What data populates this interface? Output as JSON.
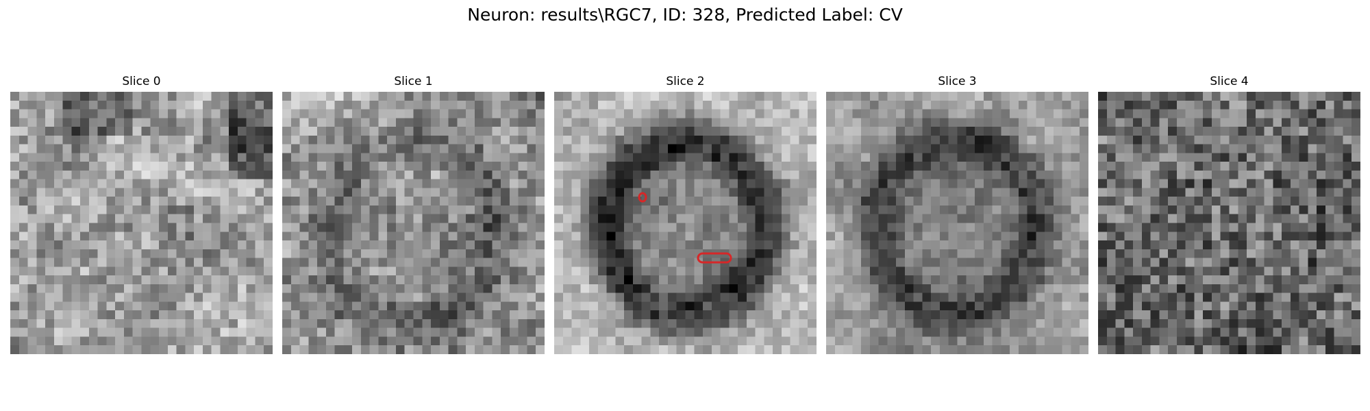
{
  "figure": {
    "title": "Neuron: results\\RGC7, ID: 328, Predicted Label: CV"
  },
  "slices": [
    {
      "label": "Slice 0",
      "pattern": "noisy-bright"
    },
    {
      "label": "Slice 1",
      "pattern": "faint-ring"
    },
    {
      "label": "Slice 2",
      "pattern": "dark-ring-bright-bg"
    },
    {
      "label": "Slice 3",
      "pattern": "ring"
    },
    {
      "label": "Slice 4",
      "pattern": "noisy-dark"
    }
  ],
  "colors": {
    "annotation": "#d62728",
    "colormap": "grayscale"
  }
}
